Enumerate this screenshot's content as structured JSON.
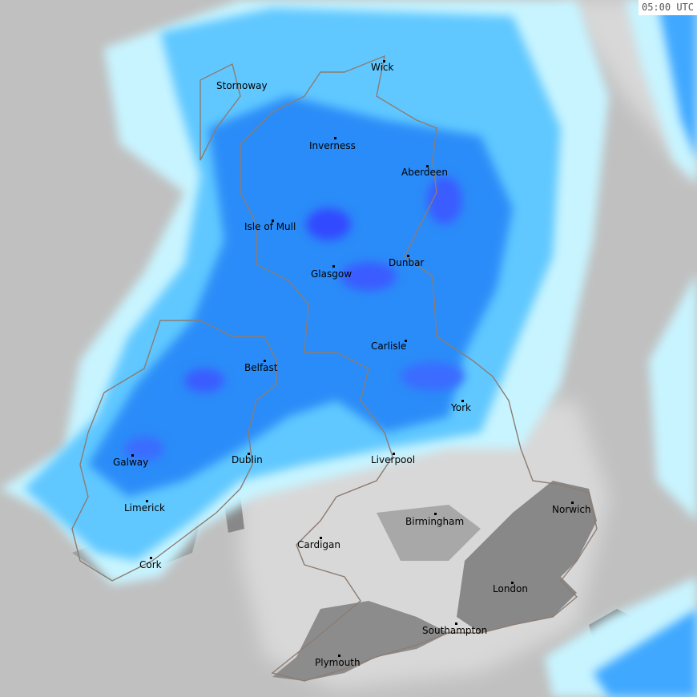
{
  "timestamp": "05:00 UTC",
  "colors": {
    "sea": "#c0c0c0",
    "dry_land": "#888888",
    "clutter": "#d8d8d8",
    "light_rain": "#c8f4ff",
    "moderate_light": "#60c8ff",
    "moderate": "#2090ff",
    "heavy": "#3050ff",
    "coastline": "#8c7c72"
  },
  "cities": [
    {
      "name": "Stornoway"
    },
    {
      "name": "Wick"
    },
    {
      "name": "Inverness"
    },
    {
      "name": "Aberdeen"
    },
    {
      "name": "Isle of Mull"
    },
    {
      "name": "Dunbar"
    },
    {
      "name": "Glasgow"
    },
    {
      "name": "Carlisle"
    },
    {
      "name": "Belfast"
    },
    {
      "name": "York"
    },
    {
      "name": "Galway"
    },
    {
      "name": "Dublin"
    },
    {
      "name": "Liverpool"
    },
    {
      "name": "Norwich"
    },
    {
      "name": "Limerick"
    },
    {
      "name": "Birmingham"
    },
    {
      "name": "Cardigan"
    },
    {
      "name": "Cork"
    },
    {
      "name": "London"
    },
    {
      "name": "Southampton"
    },
    {
      "name": "Plymouth"
    }
  ]
}
